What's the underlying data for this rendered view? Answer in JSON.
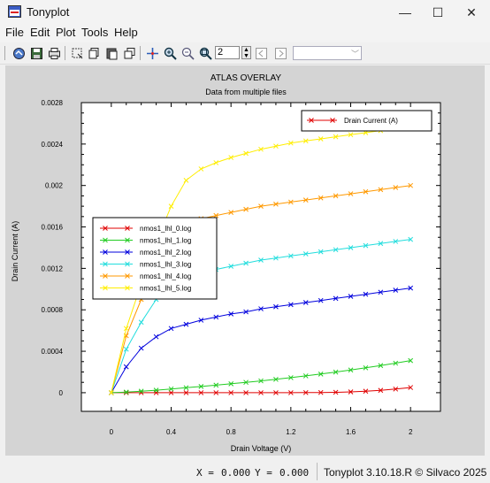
{
  "window": {
    "title": "Tonyplot",
    "minimize": "—",
    "maximize": "☐",
    "close": "✕"
  },
  "menu": [
    "File",
    "Edit",
    "Plot",
    "Tools",
    "Help"
  ],
  "toolbar": {
    "zoom_value": "2"
  },
  "status": {
    "x_label": "X = ",
    "x_value": "0.000",
    "y_label": "Y = ",
    "y_value": "0.000",
    "version": "Tonyplot 3.10.18.R © Silvaco 2025"
  },
  "chart_data": {
    "type": "line",
    "title": "ATLAS OVERLAY",
    "subtitle": "Data from multiple files",
    "xlabel": "Drain Voltage (V)",
    "ylabel": "Drain Current (A)",
    "xlim": [
      -0.2,
      2.2
    ],
    "ylim": [
      -0.00018,
      0.0028
    ],
    "xticks": [
      0,
      0.4,
      0.8,
      1.2,
      1.6,
      2
    ],
    "xtick_labels": [
      "0",
      "0.4",
      "0.8",
      "1.2",
      "1.6",
      "2"
    ],
    "yticks": [
      0,
      0.0004,
      0.0008,
      0.0012,
      0.0016,
      0.002,
      0.0024,
      0.0028
    ],
    "ytick_labels": [
      "0",
      "0.0004",
      "0.0008",
      "0.0012",
      "0.0016",
      "0.002",
      "0.0024",
      "0.0028"
    ],
    "grid": false,
    "legend_top_right": "Drain Current (A)",
    "legend_placement": "left-center",
    "series": [
      {
        "name": "nmos1_lhl_0.log",
        "color": "#e00000",
        "x": [
          0,
          0.1,
          0.2,
          0.3,
          0.4,
          0.5,
          0.6,
          0.7,
          0.8,
          0.9,
          1.0,
          1.1,
          1.2,
          1.3,
          1.4,
          1.5,
          1.6,
          1.7,
          1.8,
          1.9,
          2.0
        ],
        "y": [
          0,
          0,
          0,
          0,
          0,
          0,
          0,
          0,
          0,
          0,
          0,
          0,
          0,
          1e-06,
          2e-06,
          4e-06,
          8e-06,
          1.4e-05,
          2.3e-05,
          3.5e-05,
          5e-05
        ]
      },
      {
        "name": "nmos1_lhl_1.log",
        "color": "#22cc22",
        "x": [
          0,
          0.1,
          0.2,
          0.3,
          0.4,
          0.5,
          0.6,
          0.7,
          0.8,
          0.9,
          1.0,
          1.1,
          1.2,
          1.3,
          1.4,
          1.5,
          1.6,
          1.7,
          1.8,
          1.9,
          2.0
        ],
        "y": [
          0,
          6e-06,
          1.4e-05,
          2.4e-05,
          3.6e-05,
          4.8e-05,
          6e-05,
          7.3e-05,
          8.6e-05,
          0.0001,
          0.000114,
          0.000129,
          0.000145,
          0.000162,
          0.00018,
          0.000199,
          0.000219,
          0.00024,
          0.000262,
          0.000285,
          0.00031
        ]
      },
      {
        "name": "nmos1_lhl_2.log",
        "color": "#0000dd",
        "x": [
          0,
          0.1,
          0.2,
          0.3,
          0.4,
          0.5,
          0.6,
          0.7,
          0.8,
          0.9,
          1.0,
          1.1,
          1.2,
          1.3,
          1.4,
          1.5,
          1.6,
          1.7,
          1.8,
          1.9,
          2.0
        ],
        "y": [
          0,
          0.00025,
          0.00043,
          0.00054,
          0.00062,
          0.00066,
          0.0007,
          0.00073,
          0.00076,
          0.00078,
          0.00081,
          0.00083,
          0.00085,
          0.00087,
          0.00089,
          0.00091,
          0.00093,
          0.00095,
          0.00097,
          0.00099,
          0.00101
        ]
      },
      {
        "name": "nmos1_lhl_3.log",
        "color": "#22dddd",
        "x": [
          0,
          0.1,
          0.2,
          0.3,
          0.4,
          0.5,
          0.6,
          0.7,
          0.8,
          0.9,
          1.0,
          1.1,
          1.2,
          1.3,
          1.4,
          1.5,
          1.6,
          1.7,
          1.8,
          1.9,
          2.0
        ],
        "y": [
          0,
          0.00042,
          0.00068,
          0.0009,
          0.00106,
          0.00112,
          0.00116,
          0.00119,
          0.00122,
          0.00125,
          0.00128,
          0.0013,
          0.00132,
          0.00134,
          0.00136,
          0.00138,
          0.0014,
          0.00142,
          0.00144,
          0.00146,
          0.00148
        ]
      },
      {
        "name": "nmos1_lhl_4.log",
        "color": "#ff9900",
        "x": [
          0,
          0.1,
          0.2,
          0.3,
          0.4,
          0.5,
          0.6,
          0.7,
          0.8,
          0.9,
          1.0,
          1.1,
          1.2,
          1.3,
          1.4,
          1.5,
          1.6,
          1.7,
          1.8,
          1.9,
          2.0
        ],
        "y": [
          0,
          0.00055,
          0.0009,
          0.00125,
          0.0016,
          0.00164,
          0.00168,
          0.00171,
          0.00174,
          0.00177,
          0.0018,
          0.00182,
          0.00184,
          0.00186,
          0.00188,
          0.0019,
          0.00192,
          0.00194,
          0.00196,
          0.00198,
          0.002
        ]
      },
      {
        "name": "nmos1_lhl_5.log",
        "color": "#ffee00",
        "x": [
          0,
          0.1,
          0.2,
          0.3,
          0.4,
          0.5,
          0.6,
          0.7,
          0.8,
          0.9,
          1.0,
          1.1,
          1.2,
          1.3,
          1.4,
          1.5,
          1.6,
          1.7,
          1.8,
          1.9,
          2.0
        ],
        "y": [
          0,
          0.00062,
          0.00105,
          0.00145,
          0.0018,
          0.00205,
          0.00216,
          0.00222,
          0.00227,
          0.00231,
          0.00235,
          0.00238,
          0.00241,
          0.00243,
          0.00245,
          0.00247,
          0.00249,
          0.00251,
          0.00253,
          0.00255,
          0.00257
        ]
      }
    ],
    "legend_top_right_color": "#e00000"
  }
}
